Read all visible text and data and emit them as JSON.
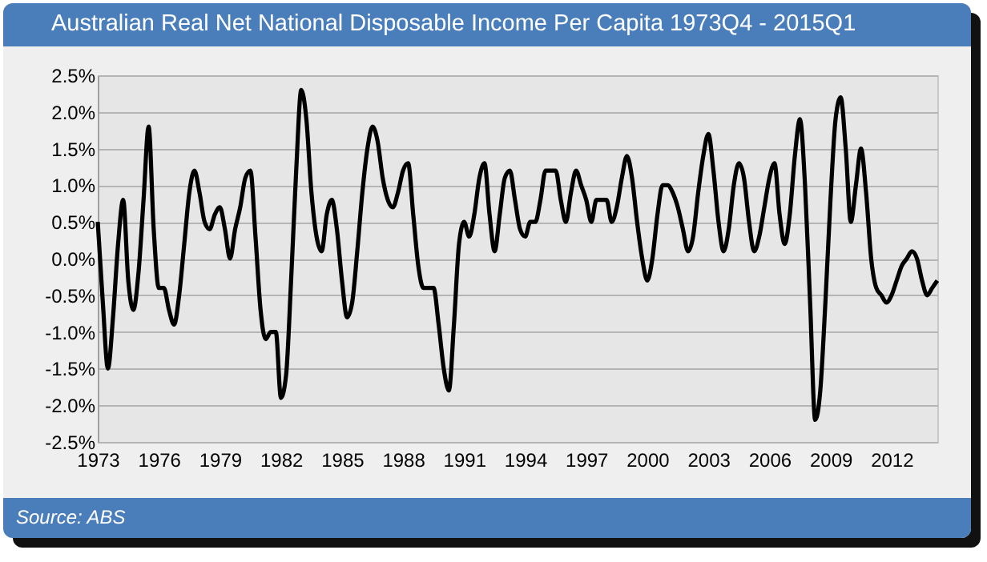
{
  "chart_data": {
    "type": "line",
    "title": "Australian Real Net National Disposable Income Per Capita 1973Q4 - 2015Q1",
    "annotations": [
      "Source: ABS"
    ],
    "categories": [
      "1973",
      null,
      null,
      null,
      null,
      null,
      null,
      null,
      null,
      null,
      null,
      null,
      "1976",
      null,
      null,
      null,
      null,
      null,
      null,
      null,
      null,
      null,
      null,
      null,
      "1979",
      null,
      null,
      null,
      null,
      null,
      null,
      null,
      null,
      null,
      null,
      null,
      "1982",
      null,
      null,
      null,
      null,
      null,
      null,
      null,
      null,
      null,
      null,
      null,
      "1985",
      null,
      null,
      null,
      null,
      null,
      null,
      null,
      null,
      null,
      null,
      null,
      "1988",
      null,
      null,
      null,
      null,
      null,
      null,
      null,
      null,
      null,
      null,
      null,
      "1991",
      null,
      null,
      null,
      null,
      null,
      null,
      null,
      null,
      null,
      null,
      null,
      "1994",
      null,
      null,
      null,
      null,
      null,
      null,
      null,
      null,
      null,
      null,
      null,
      "1997",
      null,
      null,
      null,
      null,
      null,
      null,
      null,
      null,
      null,
      null,
      null,
      "2000",
      null,
      null,
      null,
      null,
      null,
      null,
      null,
      null,
      null,
      null,
      null,
      "2003",
      null,
      null,
      null,
      null,
      null,
      null,
      null,
      null,
      null,
      null,
      null,
      "2006",
      null,
      null,
      null,
      null,
      null,
      null,
      null,
      null,
      null,
      null,
      null,
      "2009",
      null,
      null,
      null,
      null,
      null,
      null,
      null,
      null,
      null,
      null,
      null,
      "2012",
      null,
      null,
      null,
      null,
      null,
      null,
      null,
      null,
      null
    ],
    "series": [
      {
        "color": "#000000",
        "values": [
          0.5,
          -0.6,
          -1.5,
          -0.8,
          0.2,
          0.8,
          -0.3,
          -0.7,
          -0.2,
          0.8,
          1.8,
          0.4,
          -0.4,
          -0.4,
          -0.7,
          -0.9,
          -0.5,
          0.2,
          0.9,
          1.2,
          0.9,
          0.5,
          0.4,
          0.6,
          0.7,
          0.4,
          0.0,
          0.4,
          0.7,
          1.1,
          1.2,
          0.3,
          -0.7,
          -1.1,
          -1.0,
          -1.0,
          -1.9,
          -1.6,
          -0.3,
          1.2,
          2.3,
          1.9,
          0.9,
          0.3,
          0.1,
          0.6,
          0.8,
          0.4,
          -0.3,
          -0.8,
          -0.6,
          0.1,
          0.9,
          1.5,
          1.8,
          1.6,
          1.1,
          0.8,
          0.7,
          0.9,
          1.2,
          1.3,
          0.6,
          -0.1,
          -0.4,
          -0.4,
          -0.4,
          -0.9,
          -1.5,
          -1.8,
          -0.9,
          0.2,
          0.5,
          0.3,
          0.6,
          1.1,
          1.3,
          0.6,
          0.1,
          0.6,
          1.1,
          1.2,
          0.8,
          0.4,
          0.3,
          0.5,
          0.5,
          0.8,
          1.2,
          1.2,
          1.2,
          0.8,
          0.5,
          0.9,
          1.2,
          1.0,
          0.8,
          0.5,
          0.8,
          0.8,
          0.8,
          0.5,
          0.7,
          1.1,
          1.4,
          1.1,
          0.5,
          0.0,
          -0.3,
          0.0,
          0.6,
          1.0,
          1.0,
          0.9,
          0.7,
          0.4,
          0.1,
          0.3,
          0.9,
          1.4,
          1.7,
          1.2,
          0.5,
          0.1,
          0.4,
          1.0,
          1.3,
          1.1,
          0.5,
          0.1,
          0.3,
          0.7,
          1.1,
          1.3,
          0.6,
          0.2,
          0.6,
          1.4,
          1.9,
          1.0,
          -0.6,
          -2.2,
          -1.8,
          -0.6,
          0.8,
          1.9,
          2.2,
          1.5,
          0.5,
          1.0,
          1.5,
          0.9,
          0.0,
          -0.4,
          -0.5,
          -0.6,
          -0.5,
          -0.3,
          -0.1,
          0.0,
          0.1,
          0.0,
          -0.3,
          -0.5,
          -0.4,
          -0.3
        ]
      }
    ],
    "ylim": [
      -2.5,
      2.5
    ],
    "yticks": [
      {
        "value": -2.5,
        "label": "-2.5%"
      },
      {
        "value": -2.0,
        "label": "-2.0%"
      },
      {
        "value": -1.5,
        "label": "-1.5%"
      },
      {
        "value": -1.0,
        "label": "-1.0%"
      },
      {
        "value": -0.5,
        "label": "-0.5%"
      },
      {
        "value": 0,
        "label": "0.0%"
      },
      {
        "value": 0.5,
        "label": "0.5%"
      },
      {
        "value": 1.0,
        "label": "1.0%"
      },
      {
        "value": 1.5,
        "label": "1.5%"
      },
      {
        "value": 2.0,
        "label": "2.0%"
      },
      {
        "value": 2.5,
        "label": "2.5%"
      }
    ],
    "grid": "y",
    "line_style": "solid"
  }
}
